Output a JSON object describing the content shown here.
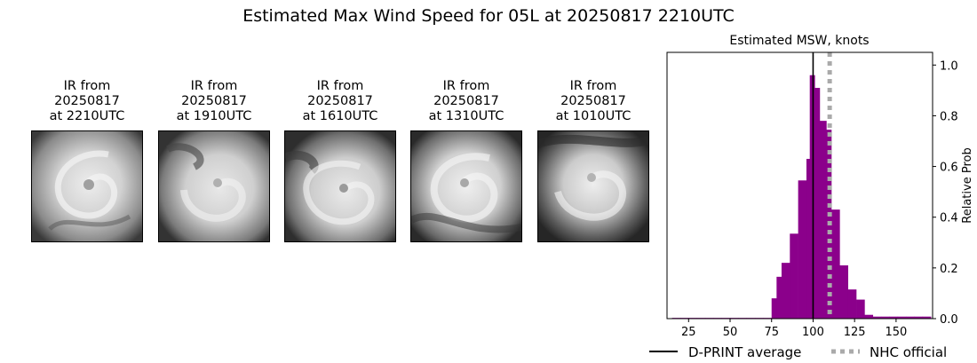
{
  "suptitle": "Estimated Max Wind Speed for 05L at 20250817 2210UTC",
  "panels": [
    {
      "title": "IR from\n20250817\nat 2210UTC"
    },
    {
      "title": "IR from\n20250817\nat 1910UTC"
    },
    {
      "title": "IR from\n20250817\nat 1610UTC"
    },
    {
      "title": "IR from\n20250817\nat 1310UTC"
    },
    {
      "title": "IR from\n20250817\nat 1010UTC"
    }
  ],
  "chart_data": {
    "type": "bar",
    "title": "Estimated MSW, knots",
    "xlabel": "",
    "ylabel": "Relative Prob",
    "xlim": [
      12,
      172
    ],
    "ylim": [
      0,
      1.05
    ],
    "xticks": [
      25,
      50,
      75,
      100,
      125,
      150
    ],
    "yticks": [
      0.0,
      0.2,
      0.4,
      0.6,
      0.8,
      1.0
    ],
    "ytick_labels": [
      "0.0",
      "0.2",
      "0.4",
      "0.6",
      "0.8",
      "1.0"
    ],
    "bar_color": "#8b008b",
    "bin_width": 5,
    "bins": [
      {
        "x": 15,
        "y": 0.003
      },
      {
        "x": 20,
        "y": 0.003
      },
      {
        "x": 25,
        "y": 0.003
      },
      {
        "x": 30,
        "y": 0.003
      },
      {
        "x": 35,
        "y": 0.003
      },
      {
        "x": 40,
        "y": 0.003
      },
      {
        "x": 45,
        "y": 0.003
      },
      {
        "x": 50,
        "y": 0.003
      },
      {
        "x": 55,
        "y": 0.003
      },
      {
        "x": 60,
        "y": 0.003
      },
      {
        "x": 65,
        "y": 0.003
      },
      {
        "x": 70,
        "y": 0.003
      },
      {
        "x": 75,
        "y": 0.08
      },
      {
        "x": 78,
        "y": 0.165
      },
      {
        "x": 81,
        "y": 0.22
      },
      {
        "x": 86,
        "y": 0.335
      },
      {
        "x": 91,
        "y": 0.545
      },
      {
        "x": 96,
        "y": 0.63
      },
      {
        "x": 98,
        "y": 0.96
      },
      {
        "x": 101,
        "y": 0.91
      },
      {
        "x": 104,
        "y": 0.78
      },
      {
        "x": 108,
        "y": 0.745
      },
      {
        "x": 111,
        "y": 0.43
      },
      {
        "x": 116,
        "y": 0.21
      },
      {
        "x": 121,
        "y": 0.115
      },
      {
        "x": 126,
        "y": 0.075
      },
      {
        "x": 131,
        "y": 0.015
      },
      {
        "x": 136,
        "y": 0.008
      },
      {
        "x": 141,
        "y": 0.008
      },
      {
        "x": 146,
        "y": 0.008
      },
      {
        "x": 151,
        "y": 0.008
      },
      {
        "x": 156,
        "y": 0.008
      },
      {
        "x": 161,
        "y": 0.008
      },
      {
        "x": 166,
        "y": 0.008
      }
    ],
    "lines": [
      {
        "name": "D-PRINT average",
        "x": 100,
        "style": "solid",
        "color": "#000000"
      },
      {
        "name": "NHC official",
        "x": 110,
        "style": "dotted",
        "color": "#aaaaaa"
      }
    ],
    "legend_placement": "bottom"
  }
}
